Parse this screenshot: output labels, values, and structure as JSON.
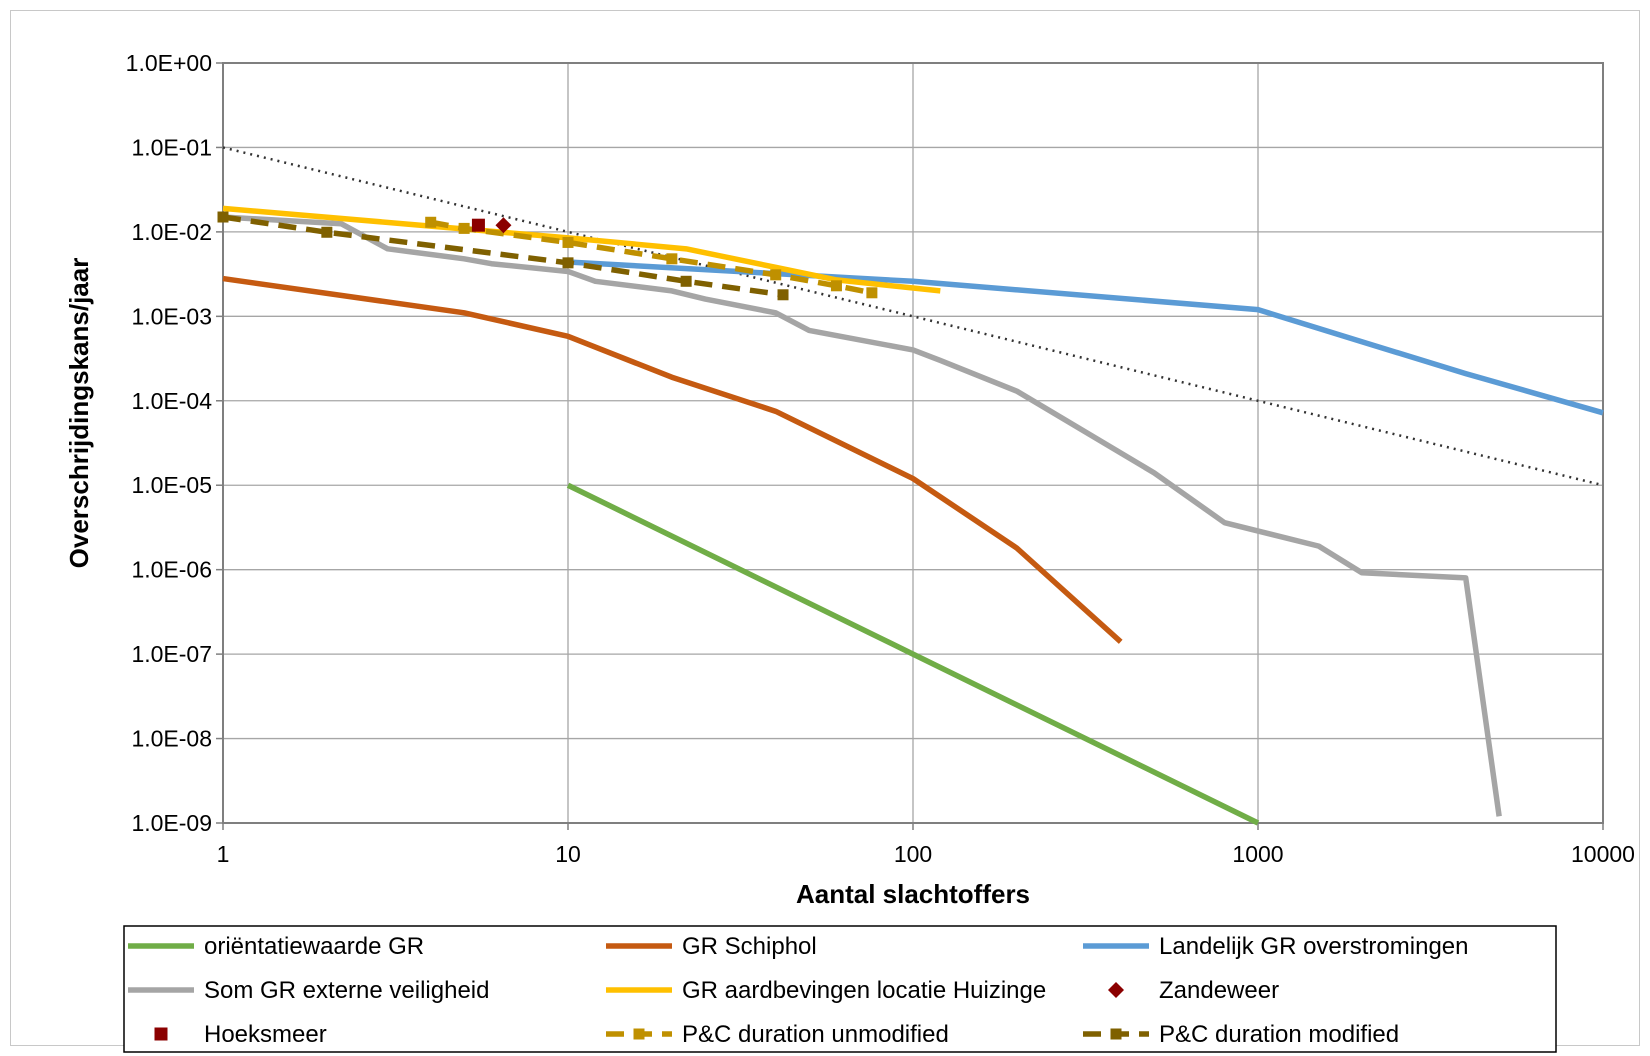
{
  "chart_data": {
    "type": "line",
    "title": "",
    "xlabel": "Aantal slachtoffers",
    "ylabel": "Overschrijdingskans/jaar",
    "x_scale": "log",
    "y_scale": "log",
    "xlim": [
      1,
      10000
    ],
    "ylim": [
      1e-09,
      1
    ],
    "grid": true,
    "legend_position": "bottom",
    "x_ticks": [
      {
        "value": 1,
        "label": "1"
      },
      {
        "value": 10,
        "label": "10"
      },
      {
        "value": 100,
        "label": "100"
      },
      {
        "value": 1000,
        "label": "1000"
      },
      {
        "value": 10000,
        "label": "10000"
      }
    ],
    "y_ticks": [
      {
        "value": 1,
        "label": "1.0E+00"
      },
      {
        "value": 0.1,
        "label": "1.0E-01"
      },
      {
        "value": 0.01,
        "label": "1.0E-02"
      },
      {
        "value": 0.001,
        "label": "1.0E-03"
      },
      {
        "value": 0.0001,
        "label": "1.0E-04"
      },
      {
        "value": 1e-05,
        "label": "1.0E-05"
      },
      {
        "value": 1e-06,
        "label": "1.0E-06"
      },
      {
        "value": 1e-07,
        "label": "1.0E-07"
      },
      {
        "value": 1e-08,
        "label": "1.0E-08"
      },
      {
        "value": 1e-09,
        "label": "1.0E-09"
      }
    ],
    "reference_line": {
      "style": "dotted",
      "color": "#333333",
      "points": [
        [
          1,
          0.1
        ],
        [
          10000,
          1e-05
        ]
      ]
    },
    "series": [
      {
        "name": "oriëntatiewaarde GR",
        "style": "line",
        "color": "#70ad47",
        "points": [
          [
            10,
            1e-05
          ],
          [
            100,
            1e-07
          ],
          [
            1000,
            1e-09
          ]
        ]
      },
      {
        "name": "GR Schiphol",
        "style": "line",
        "color": "#c55a11",
        "points": [
          [
            1,
            0.0028
          ],
          [
            5,
            0.0011
          ],
          [
            10,
            0.00058
          ],
          [
            20,
            0.00019
          ],
          [
            40,
            7.5e-05
          ],
          [
            100,
            1.2e-05
          ],
          [
            200,
            1.8e-06
          ],
          [
            400,
            1.4e-07
          ]
        ]
      },
      {
        "name": "Landelijk GR overstromingen",
        "style": "line",
        "color": "#5b9bd5",
        "points": [
          [
            10,
            0.0044
          ],
          [
            100,
            0.0026
          ],
          [
            1000,
            0.0012
          ],
          [
            2000,
            0.0005
          ],
          [
            4000,
            0.00021
          ],
          [
            10000,
            7.2e-05
          ]
        ]
      },
      {
        "name": "Som GR externe veiligheid",
        "style": "line",
        "color": "#a5a5a5",
        "points": [
          [
            1,
            0.015
          ],
          [
            2.2,
            0.0125
          ],
          [
            3,
            0.0063
          ],
          [
            5,
            0.0048
          ],
          [
            6,
            0.0042
          ],
          [
            10,
            0.0034
          ],
          [
            12,
            0.0026
          ],
          [
            20,
            0.002
          ],
          [
            25,
            0.0016
          ],
          [
            40,
            0.0011
          ],
          [
            50,
            0.00068
          ],
          [
            100,
            0.0004
          ],
          [
            120,
            0.0003
          ],
          [
            200,
            0.00013
          ],
          [
            500,
            1.4e-05
          ],
          [
            800,
            3.6e-06
          ],
          [
            1500,
            1.9e-06
          ],
          [
            2000,
            9.2e-07
          ],
          [
            4000,
            8e-07
          ],
          [
            5000,
            1.2e-09
          ]
        ]
      },
      {
        "name": "GR aardbevingen locatie Huizinge",
        "style": "line",
        "color": "#ffc000",
        "points": [
          [
            1,
            0.019
          ],
          [
            10,
            0.0085
          ],
          [
            22,
            0.0063
          ],
          [
            40,
            0.0038
          ],
          [
            60,
            0.0027
          ],
          [
            120,
            0.002
          ]
        ]
      },
      {
        "name": "Zandeweer",
        "style": "marker",
        "marker": "diamond",
        "color": "#8b0000",
        "points": [
          [
            6.5,
            0.012
          ]
        ]
      },
      {
        "name": "Hoeksmeer",
        "style": "marker",
        "marker": "square",
        "color": "#8b0000",
        "points": [
          [
            5.5,
            0.012
          ]
        ]
      },
      {
        "name": "P&C duration unmodified",
        "style": "dashed-squares",
        "color": "#bf9000",
        "points": [
          [
            4,
            0.013
          ],
          [
            5,
            0.011
          ],
          [
            10,
            0.0075
          ],
          [
            20,
            0.0048
          ],
          [
            40,
            0.0031
          ],
          [
            60,
            0.0023
          ],
          [
            76,
            0.0019
          ]
        ]
      },
      {
        "name": "P&C duration modified",
        "style": "dashed-squares",
        "color": "#7f6000",
        "points": [
          [
            1,
            0.015
          ],
          [
            2,
            0.0099
          ],
          [
            10,
            0.0043
          ],
          [
            22,
            0.0026
          ],
          [
            42,
            0.0018
          ]
        ]
      }
    ]
  }
}
